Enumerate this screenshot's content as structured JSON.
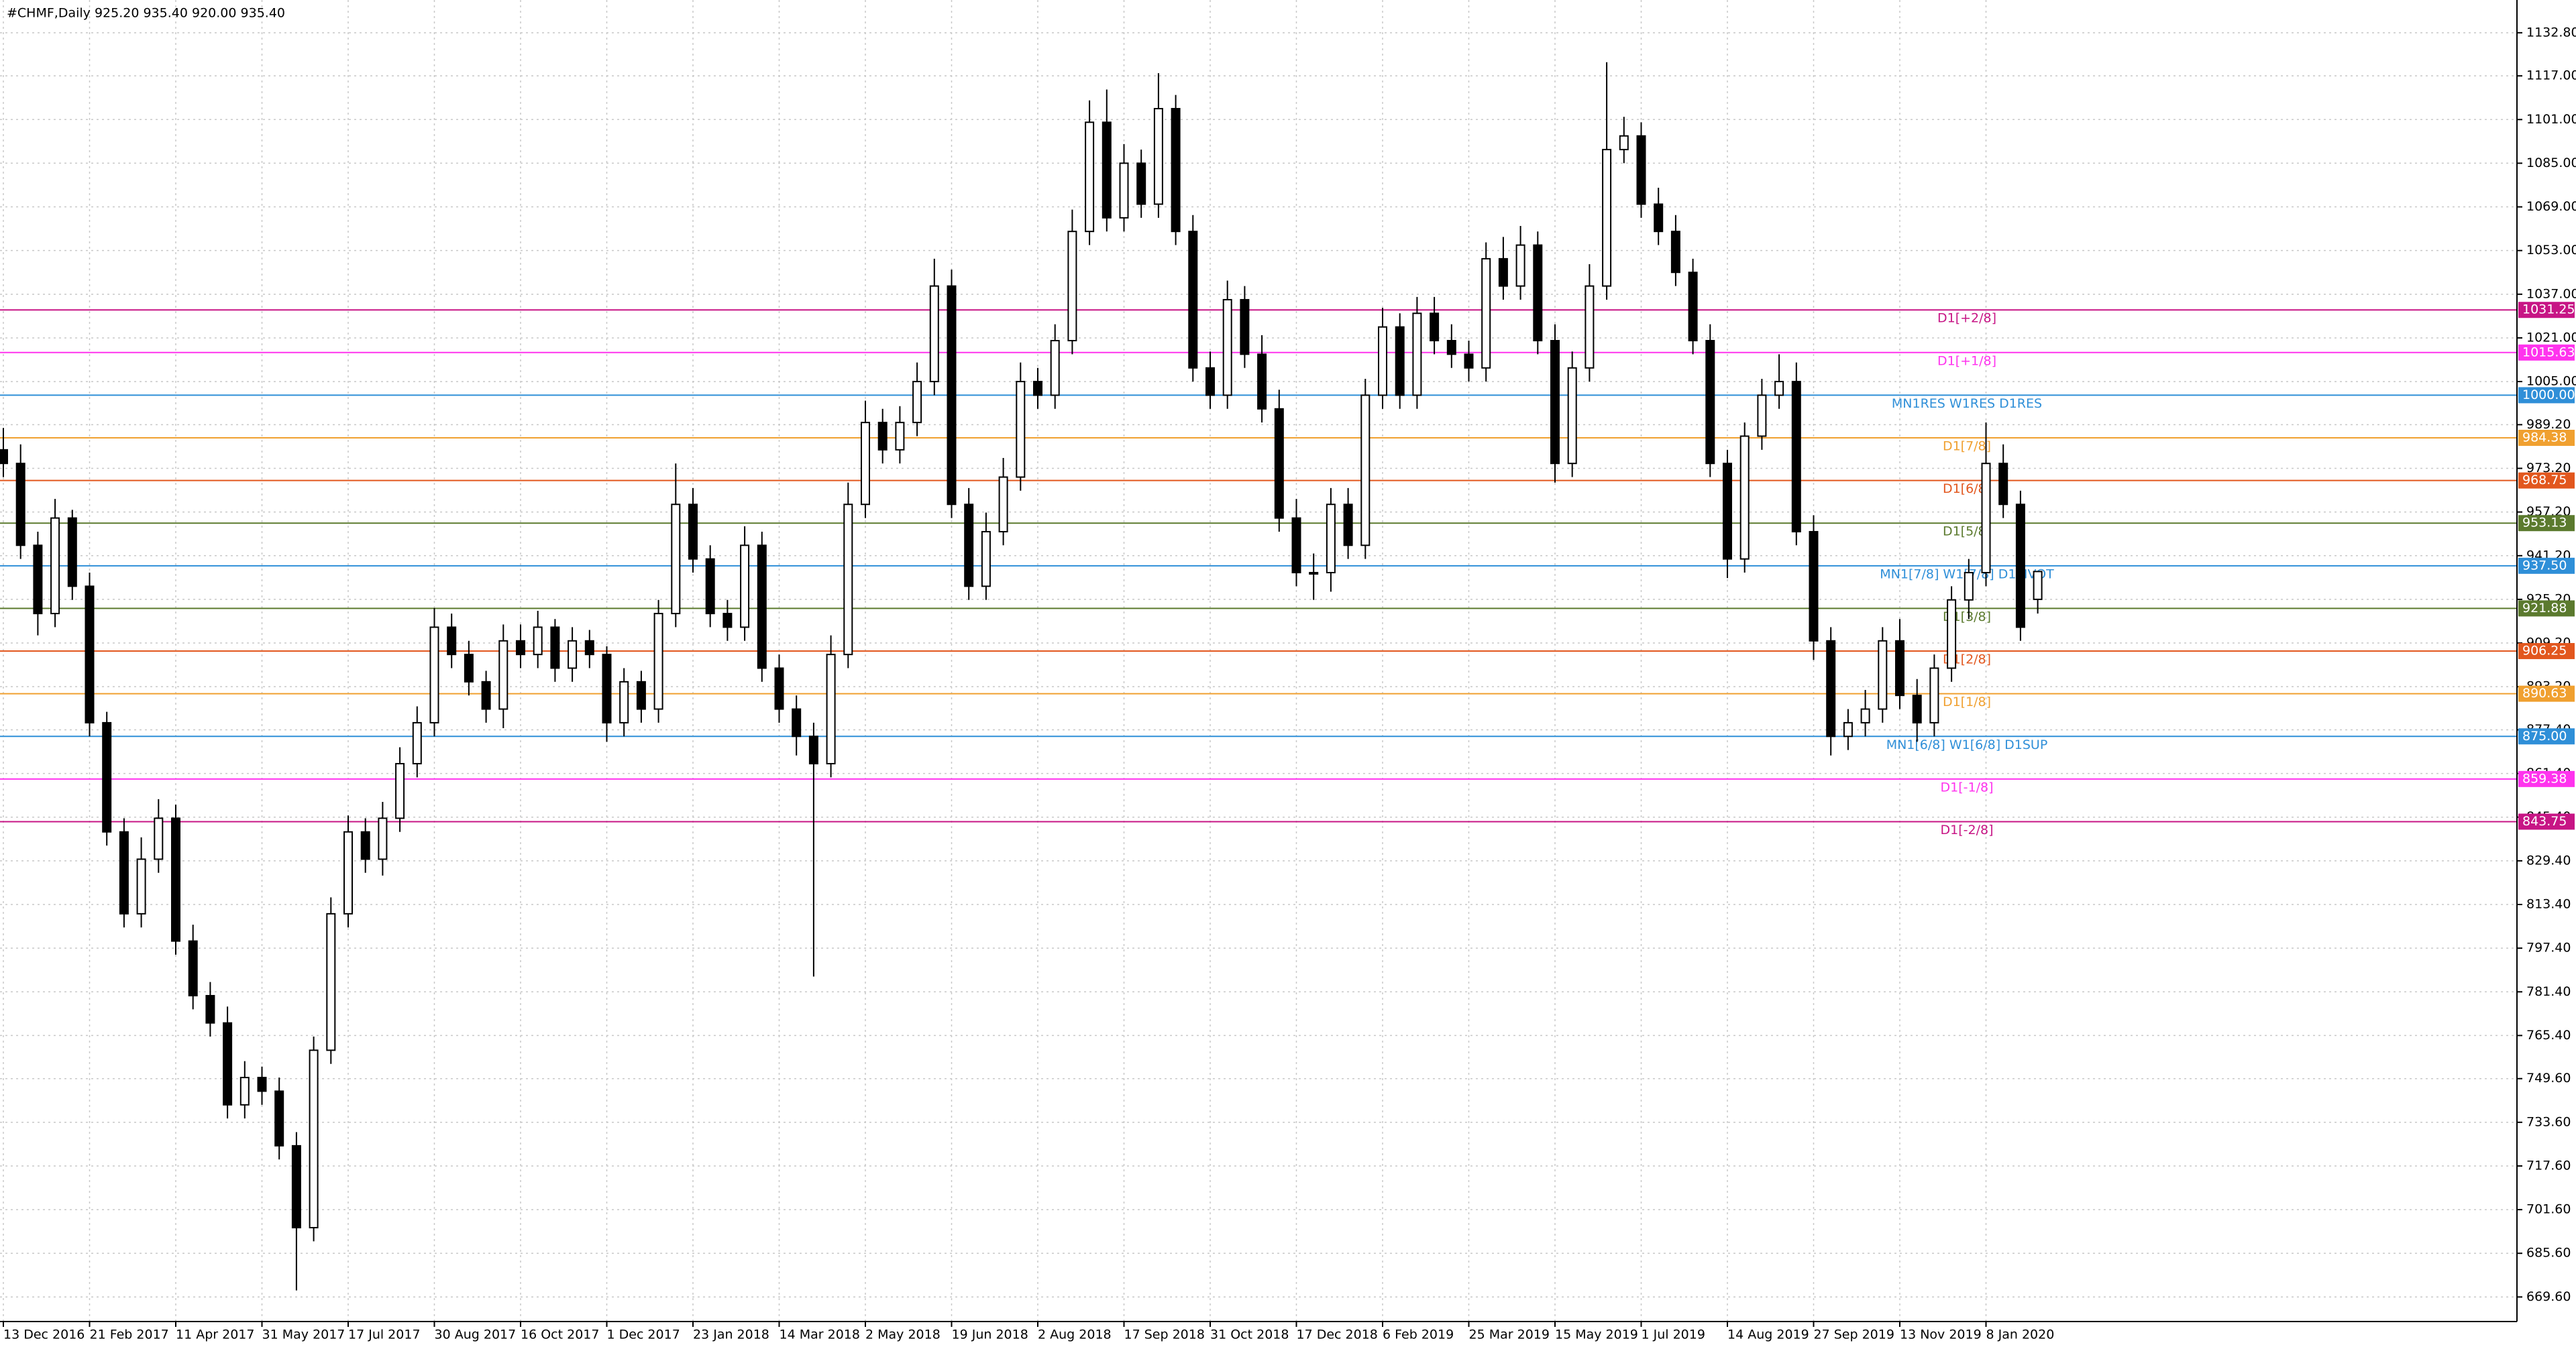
{
  "chart_data": {
    "type": "candlestick",
    "title": "#CHMF,Daily  925.20 935.40 920.00 935.40",
    "categories": [
      "13 Dec 2016",
      null,
      null,
      null,
      null,
      "21 Feb 2017",
      null,
      null,
      null,
      null,
      "11 Apr 2017",
      null,
      null,
      null,
      null,
      "31 May 2017",
      null,
      null,
      null,
      null,
      "17 Jul 2017",
      null,
      null,
      null,
      null,
      "30 Aug 2017",
      null,
      null,
      null,
      null,
      "16 Oct 2017",
      null,
      null,
      null,
      null,
      "1 Dec 2017",
      null,
      null,
      null,
      null,
      "23 Jan 2018",
      null,
      null,
      null,
      null,
      "14 Mar 2018",
      null,
      null,
      null,
      null,
      "2 May 2018",
      null,
      null,
      null,
      null,
      "19 Jun 2018",
      null,
      null,
      null,
      null,
      "2 Aug 2018",
      null,
      null,
      null,
      null,
      "17 Sep 2018",
      null,
      null,
      null,
      null,
      "31 Oct 2018",
      null,
      null,
      null,
      null,
      "17 Dec 2018",
      null,
      null,
      null,
      null,
      "6 Feb 2019",
      null,
      null,
      null,
      null,
      "25 Mar 2019",
      null,
      null,
      null,
      null,
      "15 May 2019",
      null,
      null,
      null,
      null,
      "1 Jul 2019",
      null,
      null,
      null,
      null,
      "14 Aug 2019",
      null,
      null,
      null,
      null,
      "27 Sep 2019",
      null,
      null,
      null,
      null,
      "13 Nov 2019",
      null,
      null,
      null,
      null,
      "8 Jan 2020",
      null,
      null,
      null
    ],
    "open": [
      980,
      975,
      945,
      920,
      955,
      930,
      880,
      840,
      810,
      830,
      845,
      800,
      780,
      770,
      740,
      750,
      745,
      725,
      695,
      760,
      810,
      840,
      830,
      845,
      865,
      880,
      915,
      905,
      895,
      885,
      910,
      905,
      915,
      900,
      910,
      905,
      880,
      895,
      885,
      920,
      960,
      940,
      920,
      915,
      945,
      900,
      885,
      875,
      865,
      905,
      960,
      990,
      980,
      990,
      1005,
      1040,
      960,
      930,
      950,
      970,
      1005,
      1000,
      1020,
      1060,
      1100,
      1065,
      1085,
      1070,
      1105,
      1060,
      1010,
      1000,
      1035,
      1015,
      995,
      955,
      935,
      935,
      960,
      945,
      1000,
      1025,
      1000,
      1030,
      1020,
      1015,
      1010,
      1050,
      1040,
      1055,
      1020,
      975,
      1010,
      1040,
      1090,
      1095,
      1070,
      1060,
      1045,
      1020,
      975,
      940,
      985,
      1000,
      1005,
      950,
      910,
      875,
      880,
      885,
      910,
      890,
      880,
      900,
      925,
      935,
      975,
      960,
      925.2
    ],
    "high": [
      988,
      982,
      950,
      962,
      958,
      935,
      884,
      845,
      838,
      852,
      850,
      806,
      785,
      776,
      756,
      754,
      750,
      730,
      765,
      816,
      846,
      845,
      851,
      871,
      886,
      922,
      920,
      910,
      899,
      916,
      916,
      921,
      918,
      915,
      914,
      908,
      900,
      899,
      925,
      975,
      966,
      945,
      925,
      952,
      950,
      905,
      890,
      880,
      912,
      968,
      998,
      995,
      996,
      1012,
      1050,
      1046,
      966,
      957,
      977,
      1012,
      1010,
      1026,
      1068,
      1108,
      1112,
      1092,
      1090,
      1118,
      1110,
      1066,
      1016,
      1042,
      1040,
      1022,
      1002,
      962,
      942,
      966,
      966,
      1006,
      1032,
      1030,
      1036,
      1036,
      1026,
      1020,
      1056,
      1058,
      1062,
      1060,
      1026,
      1016,
      1048,
      1122,
      1102,
      1100,
      1076,
      1066,
      1050,
      1026,
      980,
      990,
      1006,
      1015,
      1012,
      956,
      915,
      885,
      892,
      915,
      918,
      896,
      905,
      930,
      940,
      990,
      982,
      965,
      935.4
    ],
    "low": [
      970,
      940,
      912,
      915,
      925,
      875,
      835,
      805,
      805,
      825,
      795,
      775,
      765,
      735,
      735,
      740,
      720,
      672,
      690,
      755,
      805,
      825,
      824,
      840,
      860,
      875,
      900,
      890,
      880,
      878,
      900,
      900,
      895,
      895,
      900,
      873,
      875,
      880,
      880,
      915,
      935,
      915,
      910,
      910,
      895,
      880,
      868,
      787,
      860,
      900,
      955,
      975,
      975,
      985,
      1000,
      955,
      925,
      925,
      945,
      965,
      995,
      995,
      1015,
      1055,
      1060,
      1060,
      1065,
      1065,
      1055,
      1005,
      995,
      995,
      1010,
      990,
      950,
      930,
      925,
      928,
      940,
      940,
      995,
      995,
      995,
      1015,
      1010,
      1005,
      1005,
      1035,
      1035,
      1015,
      968,
      970,
      1005,
      1035,
      1085,
      1065,
      1055,
      1040,
      1015,
      970,
      933,
      935,
      980,
      995,
      945,
      903,
      868,
      870,
      875,
      880,
      885,
      873,
      875,
      895,
      918,
      930,
      955,
      910,
      920
    ],
    "close": [
      975,
      945,
      920,
      955,
      930,
      880,
      840,
      810,
      830,
      845,
      800,
      780,
      770,
      740,
      750,
      745,
      725,
      695,
      760,
      810,
      840,
      830,
      845,
      865,
      880,
      915,
      905,
      895,
      885,
      910,
      905,
      915,
      900,
      910,
      905,
      880,
      895,
      885,
      920,
      960,
      940,
      920,
      915,
      945,
      900,
      885,
      875,
      865,
      905,
      960,
      990,
      980,
      990,
      1005,
      1040,
      960,
      930,
      950,
      970,
      1005,
      1000,
      1020,
      1060,
      1100,
      1065,
      1085,
      1070,
      1105,
      1060,
      1010,
      1000,
      1035,
      1015,
      995,
      955,
      935,
      935,
      960,
      945,
      1000,
      1025,
      1000,
      1030,
      1020,
      1015,
      1010,
      1050,
      1040,
      1055,
      1020,
      975,
      1010,
      1040,
      1090,
      1095,
      1070,
      1060,
      1045,
      1020,
      975,
      940,
      985,
      1000,
      1005,
      950,
      910,
      875,
      880,
      885,
      910,
      890,
      880,
      900,
      925,
      935,
      975,
      960,
      915,
      935.4
    ],
    "bull_color": "#ffffff",
    "bear_color": "#000000",
    "wick_color": "#000000",
    "ylim": [
      660.6,
      1144.8
    ],
    "yticks": [
      {
        "value": 1132.8,
        "label": "1132.80"
      },
      {
        "value": 1117,
        "label": "1117.00"
      },
      {
        "value": 1101,
        "label": "1101.00"
      },
      {
        "value": 1085,
        "label": "1085.00"
      },
      {
        "value": 1069,
        "label": "1069.00"
      },
      {
        "value": 1053,
        "label": "1053.00"
      },
      {
        "value": 1037,
        "label": "1037.00"
      },
      {
        "value": 1021,
        "label": "1021.00"
      },
      {
        "value": 1005,
        "label": "1005.00"
      },
      {
        "value": 989.2,
        "label": "989.20"
      },
      {
        "value": 973.2,
        "label": "973.20"
      },
      {
        "value": 957.2,
        "label": "957.20"
      },
      {
        "value": 941.2,
        "label": "941.20"
      },
      {
        "value": 925.2,
        "label": "925.20"
      },
      {
        "value": 909.2,
        "label": "909.20"
      },
      {
        "value": 893.2,
        "label": "893.20"
      },
      {
        "value": 877.4,
        "label": "877.40"
      },
      {
        "value": 861.4,
        "label": "861.40"
      },
      {
        "value": 845.4,
        "label": "845.40"
      },
      {
        "value": 829.4,
        "label": "829.40"
      },
      {
        "value": 813.4,
        "label": "813.40"
      },
      {
        "value": 797.4,
        "label": "797.40"
      },
      {
        "value": 781.4,
        "label": "781.40"
      },
      {
        "value": 765.4,
        "label": "765.40"
      },
      {
        "value": 749.6,
        "label": "749.60"
      },
      {
        "value": 733.6,
        "label": "733.60"
      },
      {
        "value": 717.6,
        "label": "717.60"
      },
      {
        "value": 701.6,
        "label": "701.60"
      },
      {
        "value": 685.6,
        "label": "685.60"
      },
      {
        "value": 669.6,
        "label": "669.60"
      }
    ],
    "grid": true,
    "levels": {
      "names": [
        "D1[+2/8]",
        "D1[+1/8]",
        "MN1RES W1RES D1RES",
        "D1[7/8]",
        "D1[6/8]",
        "D1[5/8]",
        "MN1[7/8] W1[7/8] D1PIVOT",
        "D1[3/8]",
        "D1[2/8]",
        "D1[1/8]",
        "MN1[6/8] W1[6/8] D1SUP",
        "D1[-1/8]",
        "D1[-2/8]"
      ],
      "values": [
        1031.25,
        1015.63,
        1000,
        984.38,
        968.75,
        953.13,
        937.5,
        921.88,
        906.25,
        890.63,
        875,
        859.38,
        843.75
      ],
      "value_labels": [
        "1031.25",
        "1015.63",
        "1000.00",
        "984.38",
        "968.75",
        "953.13",
        "937.50",
        "921.88",
        "906.25",
        "890.63",
        "875.00",
        "859.38",
        "843.75"
      ],
      "colors": [
        "#c71585",
        "#ff33ee",
        "#2f8fd8",
        "#f0a030",
        "#e2571e",
        "#5b7a2e",
        "#2f8fd8",
        "#5b7a2e",
        "#e2571e",
        "#f0a030",
        "#2f8fd8",
        "#ff33ee",
        "#c71585"
      ]
    }
  }
}
